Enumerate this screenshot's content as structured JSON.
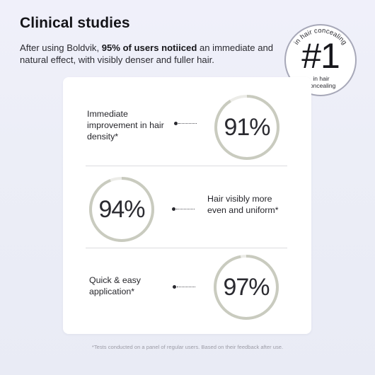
{
  "header": {
    "title": "Clinical studies",
    "intro_pre": "After using Boldvik, ",
    "intro_bold": "95% of users notiiced",
    "intro_post": " an immediate and natural effect, with visibly denser and fuller hair."
  },
  "badge": {
    "number": "#1",
    "arc_text": "in hair concealing",
    "sub_text": "in hair concealing"
  },
  "studies": [
    {
      "label": "Immediate improvement in hair density*",
      "percent_label": "91%",
      "percent": 91
    },
    {
      "label": "Hair visibly more even and uniform*",
      "percent_label": "94%",
      "percent": 94
    },
    {
      "label": "Quick & easy application*",
      "percent_label": "97%",
      "percent": 97
    }
  ],
  "footnote": "*Tests conducted on a panel of regular users. Based on their feedback after use.",
  "colors": {
    "ring_fill": "#c9cbbf",
    "ring_track": "#ecece8",
    "badge_ring": "#a7a8b8",
    "background": "#eceef7"
  }
}
